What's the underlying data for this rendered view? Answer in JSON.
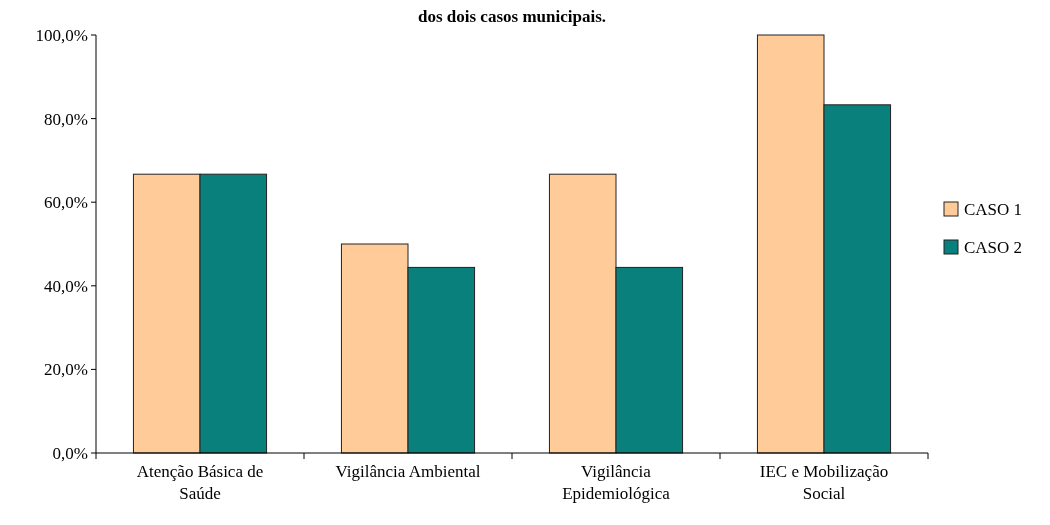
{
  "chart_data": {
    "type": "bar",
    "title": "dos dois casos municipais.",
    "categories": [
      "Atenção Básica de Saúde",
      "Vigilância Ambiental",
      "Vigilância Epidemiológica",
      "IEC e Mobilização Social"
    ],
    "series": [
      {
        "name": "CASO 1",
        "color": "#ffcc99",
        "values": [
          66.7,
          50.0,
          66.7,
          100.0
        ]
      },
      {
        "name": "CASO 2",
        "color": "#0a807c",
        "values": [
          66.7,
          44.4,
          44.4,
          83.3
        ]
      }
    ],
    "ylim": [
      0,
      100
    ],
    "yticks": [
      {
        "value": 0,
        "label": "0,0%"
      },
      {
        "value": 20,
        "label": "20,0%"
      },
      {
        "value": 40,
        "label": "40,0%"
      },
      {
        "value": 60,
        "label": "60,0%"
      },
      {
        "value": 80,
        "label": "80,0%"
      },
      {
        "value": 100,
        "label": "100,0%"
      }
    ],
    "grid": false,
    "legend": "right"
  }
}
